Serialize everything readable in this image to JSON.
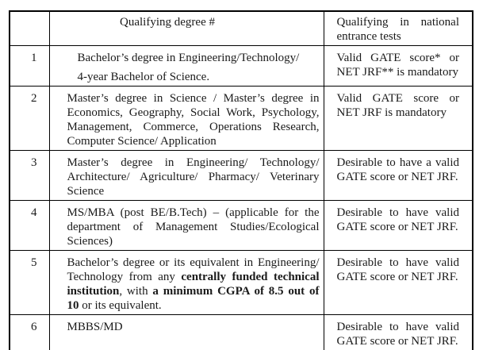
{
  "page": {
    "background_color": "#ffffff",
    "text_color": "#1a1a1a",
    "border_color": "#000000"
  },
  "table": {
    "headers": {
      "num": "",
      "degree": "Qualifying degree #",
      "tests": "Qualifying in national entrance tests"
    },
    "rows": [
      {
        "num": "1",
        "indent": true,
        "degree": [
          [
            {
              "t": "Bachelor’s degree in Engineering/Technology/"
            }
          ],
          [
            {
              "t": "4-year Bachelor of Science."
            }
          ]
        ],
        "tests": "Valid GATE score* or NET JRF** is mandatory"
      },
      {
        "num": "2",
        "degree": [
          [
            {
              "t": "Master’s degree in Science / Master’s degree in Economics, Geography, Social Work, Psychology, Management, Commerce, Operations Research, Computer Science/ Application"
            }
          ]
        ],
        "tests": "Valid GATE score or NET JRF is mandatory"
      },
      {
        "num": "3",
        "degree": [
          [
            {
              "t": "Master’s degree in Engineering/ Technology/ Architecture/ Agriculture/ Pharmacy/ Veterinary Science"
            }
          ]
        ],
        "tests": "Desirable to have a valid GATE score or NET JRF."
      },
      {
        "num": "4",
        "degree": [
          [
            {
              "t": "MS/MBA (post BE/B.Tech) – (applicable for the department of Management Studies/Ecological Sciences)"
            }
          ]
        ],
        "tests": "Desirable to have valid GATE score or NET JRF."
      },
      {
        "num": "5",
        "degree": [
          [
            {
              "t": "Bachelor’s degree or its equivalent in Engineering/ Technology from any "
            },
            {
              "t": "centrally funded technical institution",
              "b": true
            },
            {
              "t": ", with "
            },
            {
              "t": "a minimum CGPA of 8.5 out of 10",
              "b": true
            },
            {
              "t": " or its equivalent."
            }
          ]
        ],
        "tests": "Desirable to have valid GATE score or NET JRF."
      },
      {
        "num": "6",
        "degree": [
          [
            {
              "t": "MBBS/MD"
            }
          ]
        ],
        "tests": "Desirable to have valid GATE score or NET JRF."
      }
    ]
  }
}
